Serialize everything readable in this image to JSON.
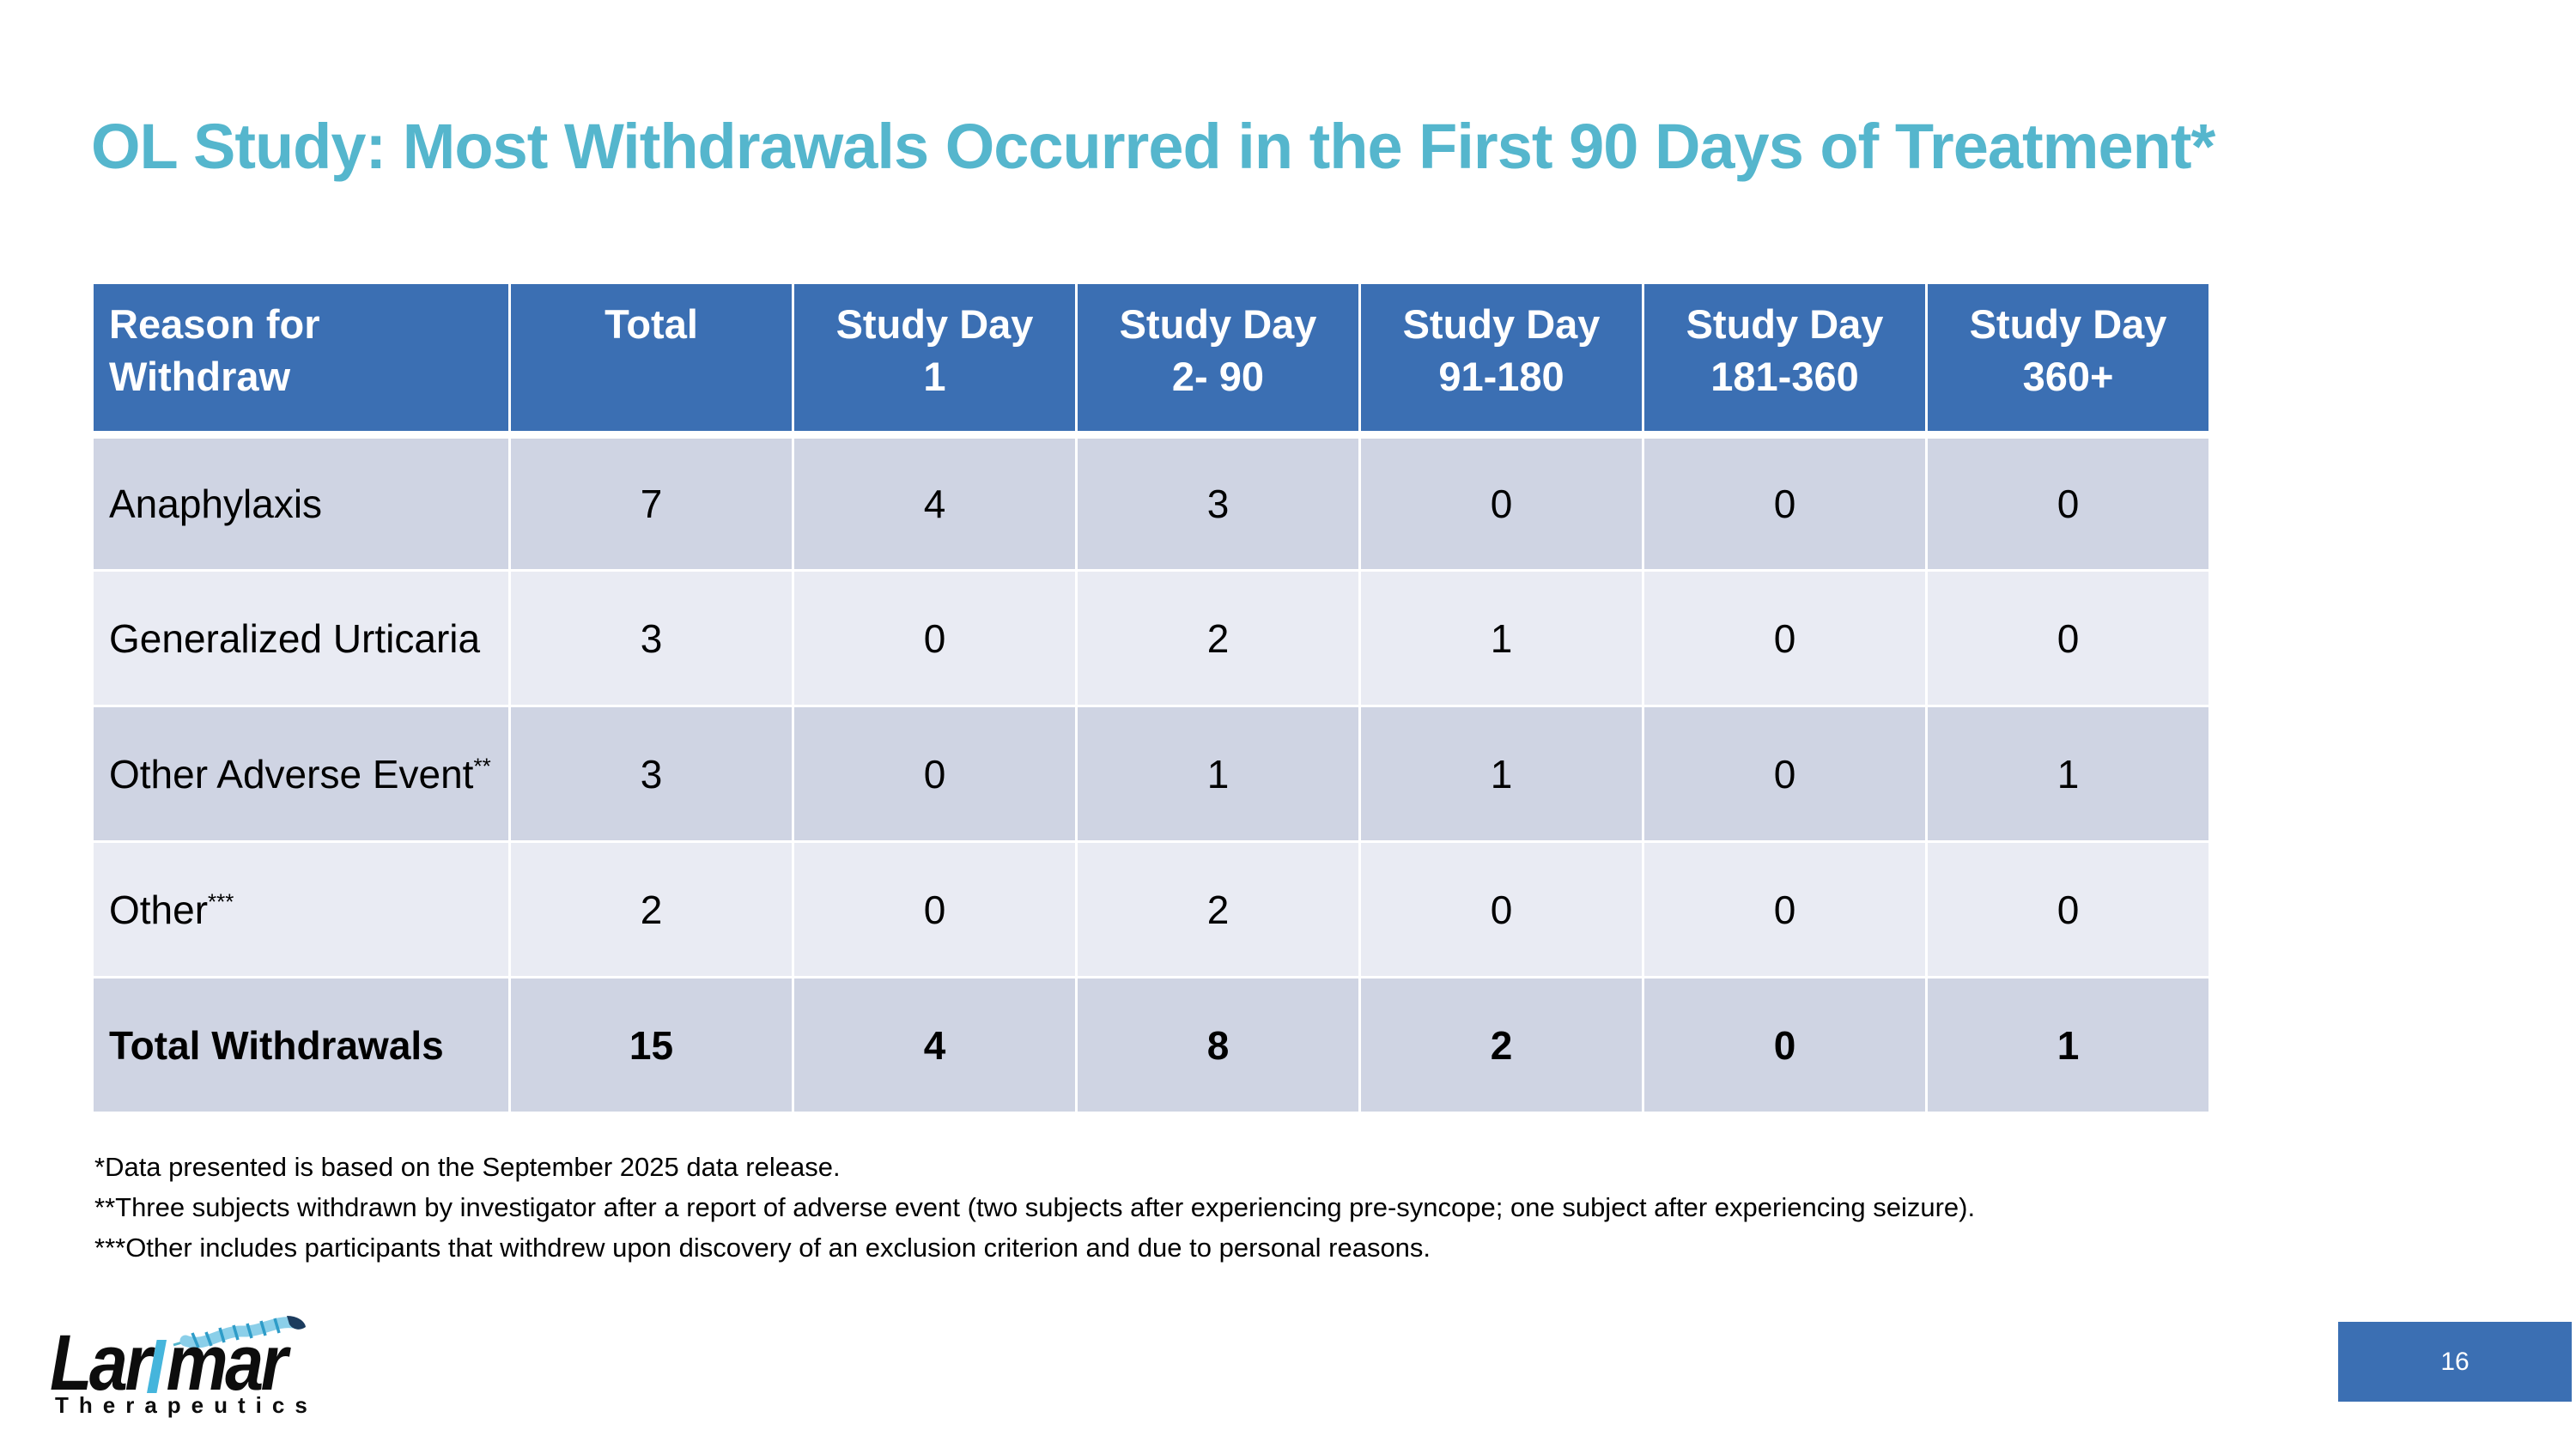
{
  "title": "OL Study: Most Withdrawals Occurred in the First 90 Days of Treatment*",
  "colors": {
    "header_blue": "#3B6FB3",
    "row_dark": "#CFD4E3",
    "row_light": "#E9EBF3",
    "title_teal": "#55B6CD",
    "logo_cyan": "#45B5DC"
  },
  "table": {
    "columns": [
      {
        "lines": [
          "Reason for",
          "Withdraw"
        ],
        "align": "left"
      },
      {
        "lines": [
          "Total"
        ],
        "align": "center"
      },
      {
        "lines": [
          "Study Day",
          "1"
        ],
        "align": "center"
      },
      {
        "lines": [
          "Study Day",
          "2- 90"
        ],
        "align": "center"
      },
      {
        "lines": [
          "Study Day",
          "91-180"
        ],
        "align": "center"
      },
      {
        "lines": [
          "Study Day",
          "181-360"
        ],
        "align": "center"
      },
      {
        "lines": [
          "Study Day",
          "360+"
        ],
        "align": "center"
      }
    ],
    "rows": [
      {
        "label": "Anaphylaxis",
        "sup": "",
        "values": [
          "7",
          "4",
          "3",
          "0",
          "0",
          "0"
        ],
        "bold": false
      },
      {
        "label": "Generalized Urticaria",
        "sup": "",
        "values": [
          "3",
          "0",
          "2",
          "1",
          "0",
          "0"
        ],
        "bold": false
      },
      {
        "label": "Other Adverse Event",
        "sup": "**",
        "values": [
          "3",
          "0",
          "1",
          "1",
          "0",
          "1"
        ],
        "bold": false
      },
      {
        "label": "Other",
        "sup": "***",
        "values": [
          "2",
          "0",
          "2",
          "0",
          "0",
          "0"
        ],
        "bold": false
      },
      {
        "label": "Total Withdrawals",
        "sup": "",
        "values": [
          "15",
          "4",
          "8",
          "2",
          "0",
          "1"
        ],
        "bold": true
      }
    ]
  },
  "footnotes": [
    "*Data presented is based on the September 2025 data release.",
    "**Three subjects withdrawn by investigator after a report of adverse event (two subjects after experiencing pre-syncope; one subject after experiencing seizure).",
    "***Other includes participants that withdrew upon discovery of an exclusion criterion and due to personal reasons."
  ],
  "logo": {
    "word_start": "Lar",
    "word_end": "mar",
    "sub": "Therapeutics"
  },
  "page_number": "16"
}
